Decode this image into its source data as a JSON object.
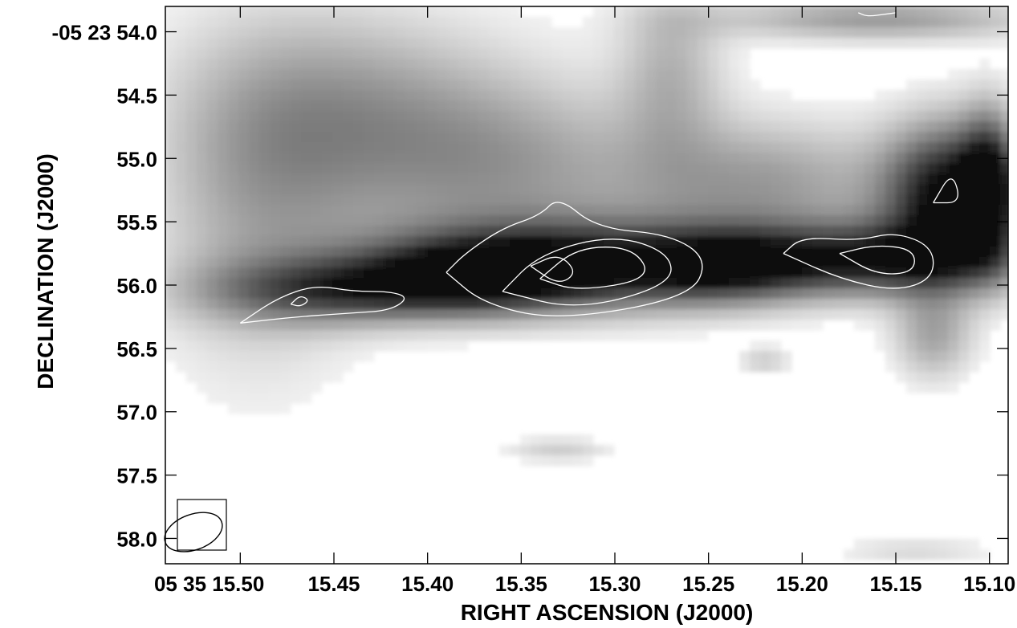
{
  "chart_data": {
    "type": "heatmap",
    "title": "",
    "xlabel": "RIGHT ASCENSION (J2000)",
    "ylabel": "DECLINATION (J2000)",
    "colormap": "greyscale (white = low, black = high)",
    "contour_color": "#ffffff",
    "xlim": [
      15.54,
      15.09
    ],
    "ylim": [
      58.2,
      53.8
    ],
    "x_ticks": [
      {
        "value": 15.5,
        "label": "05 35 15.50"
      },
      {
        "value": 15.45,
        "label": "15.45"
      },
      {
        "value": 15.4,
        "label": "15.40"
      },
      {
        "value": 15.35,
        "label": "15.35"
      },
      {
        "value": 15.3,
        "label": "15.30"
      },
      {
        "value": 15.25,
        "label": "15.25"
      },
      {
        "value": 15.2,
        "label": "15.20"
      },
      {
        "value": 15.15,
        "label": "15.15"
      },
      {
        "value": 15.1,
        "label": "15.10"
      }
    ],
    "y_ticks": [
      {
        "value": 54.0,
        "label": "-05 23 54.0"
      },
      {
        "value": 54.5,
        "label": "54.5"
      },
      {
        "value": 55.0,
        "label": "55.0"
      },
      {
        "value": 55.5,
        "label": "55.5"
      },
      {
        "value": 56.0,
        "label": "56.0"
      },
      {
        "value": 56.5,
        "label": "56.5"
      },
      {
        "value": 57.0,
        "label": "57.0"
      },
      {
        "value": 57.5,
        "label": "57.5"
      },
      {
        "value": 58.0,
        "label": "58.0"
      }
    ],
    "greyscale_blobs": [
      {
        "ra": 15.44,
        "dec": 54.6,
        "sra": 0.06,
        "sdec": 0.55,
        "level": 0.32
      },
      {
        "ra": 15.49,
        "dec": 55.4,
        "sra": 0.04,
        "sdec": 0.9,
        "level": 0.3
      },
      {
        "ra": 15.36,
        "dec": 55.1,
        "sra": 0.06,
        "sdec": 0.5,
        "level": 0.35
      },
      {
        "ra": 15.27,
        "dec": 54.3,
        "sra": 0.02,
        "sdec": 0.5,
        "level": 0.28
      },
      {
        "ra": 15.22,
        "dec": 55.2,
        "sra": 0.05,
        "sdec": 0.35,
        "level": 0.38
      },
      {
        "ra": 15.16,
        "dec": 53.9,
        "sra": 0.06,
        "sdec": 0.12,
        "level": 0.4
      },
      {
        "ra": 15.45,
        "dec": 56.05,
        "sra": 0.05,
        "sdec": 0.18,
        "level": 0.55
      },
      {
        "ra": 15.32,
        "dec": 55.85,
        "sra": 0.07,
        "sdec": 0.24,
        "level": 0.95
      },
      {
        "ra": 15.38,
        "dec": 55.95,
        "sra": 0.04,
        "sdec": 0.2,
        "level": 0.5
      },
      {
        "ra": 15.24,
        "dec": 55.85,
        "sra": 0.03,
        "sdec": 0.2,
        "level": 0.45
      },
      {
        "ra": 15.16,
        "dec": 55.8,
        "sra": 0.05,
        "sdec": 0.2,
        "level": 0.8
      },
      {
        "ra": 15.12,
        "dec": 55.3,
        "sra": 0.025,
        "sdec": 0.4,
        "level": 1.0
      },
      {
        "ra": 15.13,
        "dec": 56.4,
        "sra": 0.015,
        "sdec": 0.25,
        "level": 0.35
      },
      {
        "ra": 15.22,
        "dec": 56.6,
        "sra": 0.01,
        "sdec": 0.08,
        "level": 0.2
      },
      {
        "ra": 15.33,
        "dec": 57.3,
        "sra": 0.02,
        "sdec": 0.07,
        "level": 0.2
      },
      {
        "ra": 15.14,
        "dec": 58.1,
        "sra": 0.03,
        "sdec": 0.08,
        "level": 0.15
      },
      {
        "ra": 15.1,
        "dec": 55.2,
        "sra": 0.01,
        "sdec": 0.4,
        "level": 0.6
      }
    ],
    "contours": [
      {
        "points": [
          [
            15.5,
            56.3
          ],
          [
            15.48,
            56.1
          ],
          [
            15.46,
            56.0
          ],
          [
            15.44,
            56.05
          ],
          [
            15.42,
            56.05
          ],
          [
            15.41,
            56.1
          ],
          [
            15.42,
            56.2
          ],
          [
            15.44,
            56.22
          ],
          [
            15.47,
            56.25
          ],
          [
            15.5,
            56.3
          ]
        ]
      },
      {
        "points": [
          [
            15.473,
            56.15
          ],
          [
            15.468,
            56.08
          ],
          [
            15.463,
            56.12
          ],
          [
            15.468,
            56.17
          ],
          [
            15.473,
            56.15
          ]
        ]
      },
      {
        "points": [
          [
            15.39,
            55.9
          ],
          [
            15.38,
            55.75
          ],
          [
            15.36,
            55.55
          ],
          [
            15.34,
            55.45
          ],
          [
            15.33,
            55.3
          ],
          [
            15.31,
            55.55
          ],
          [
            15.27,
            55.6
          ],
          [
            15.25,
            55.8
          ],
          [
            15.26,
            56.1
          ],
          [
            15.33,
            56.28
          ],
          [
            15.37,
            56.15
          ],
          [
            15.39,
            55.9
          ]
        ]
      },
      {
        "points": [
          [
            15.36,
            56.05
          ],
          [
            15.34,
            55.75
          ],
          [
            15.3,
            55.6
          ],
          [
            15.27,
            55.75
          ],
          [
            15.27,
            56.0
          ],
          [
            15.32,
            56.2
          ],
          [
            15.36,
            56.05
          ]
        ]
      },
      {
        "points": [
          [
            15.34,
            55.95
          ],
          [
            15.32,
            55.7
          ],
          [
            15.29,
            55.7
          ],
          [
            15.28,
            55.95
          ],
          [
            15.32,
            56.05
          ],
          [
            15.34,
            55.95
          ]
        ]
      },
      {
        "points": [
          [
            15.345,
            55.85
          ],
          [
            15.33,
            55.75
          ],
          [
            15.32,
            55.9
          ],
          [
            15.33,
            56.0
          ],
          [
            15.345,
            55.85
          ]
        ]
      },
      {
        "points": [
          [
            15.21,
            55.75
          ],
          [
            15.2,
            55.62
          ],
          [
            15.17,
            55.65
          ],
          [
            15.15,
            55.58
          ],
          [
            15.13,
            55.7
          ],
          [
            15.13,
            55.95
          ],
          [
            15.15,
            56.05
          ],
          [
            15.18,
            55.95
          ],
          [
            15.21,
            55.75
          ]
        ]
      },
      {
        "points": [
          [
            15.18,
            55.75
          ],
          [
            15.16,
            55.68
          ],
          [
            15.14,
            55.72
          ],
          [
            15.14,
            55.9
          ],
          [
            15.16,
            55.92
          ],
          [
            15.18,
            55.75
          ]
        ]
      },
      {
        "points": [
          [
            15.13,
            55.35
          ],
          [
            15.12,
            55.1
          ],
          [
            15.115,
            55.35
          ],
          [
            15.13,
            55.35
          ]
        ]
      },
      {
        "points": [
          [
            15.17,
            53.85
          ],
          [
            15.165,
            53.88
          ],
          [
            15.155,
            53.86
          ],
          [
            15.15,
            53.85
          ]
        ]
      }
    ],
    "beam": {
      "ra": 15.525,
      "dec": 57.95,
      "sra": 0.016,
      "sdec": 0.14
    }
  }
}
